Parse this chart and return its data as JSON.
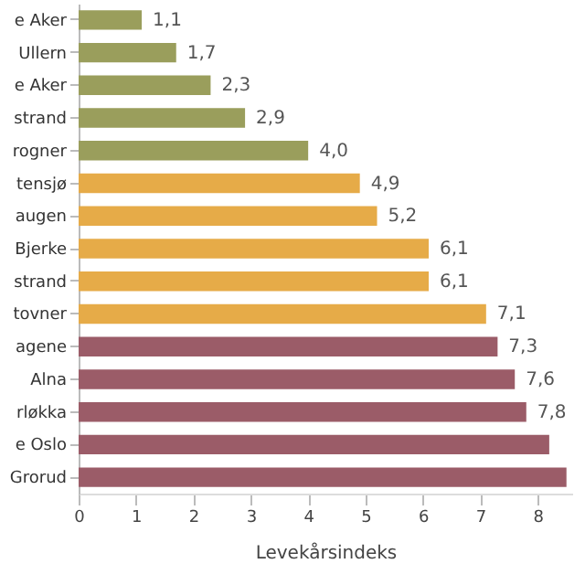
{
  "chart_data": {
    "type": "bar",
    "orientation": "horizontal",
    "xlabel": "Levekårsindeks",
    "categories": [
      "e Aker",
      "Ullern",
      "e Aker",
      "strand",
      "rogner",
      "tensjø",
      "augen",
      "Bjerke",
      "strand",
      "tovner",
      "agene",
      "Alna",
      "rløkka",
      "e Oslo",
      "Grorud"
    ],
    "values": [
      1.1,
      1.7,
      2.3,
      2.9,
      4.0,
      4.9,
      5.2,
      6.1,
      6.1,
      7.1,
      7.3,
      7.6,
      7.8,
      8.2,
      8.5
    ],
    "value_labels": [
      "1,1",
      "1,7",
      "2,3",
      "2,9",
      "4,0",
      "4,9",
      "5,2",
      "6,1",
      "6,1",
      "7,1",
      "7,3",
      "7,6",
      "7,8",
      null,
      null
    ],
    "colors": [
      "#9a9e5c",
      "#9a9e5c",
      "#9a9e5c",
      "#9a9e5c",
      "#9a9e5c",
      "#e6ab48",
      "#e6ab48",
      "#e6ab48",
      "#e6ab48",
      "#e6ab48",
      "#9b5c68",
      "#9b5c68",
      "#9b5c68",
      "#9b5c68",
      "#9b5c68"
    ],
    "xlim": [
      0,
      8.6
    ],
    "xticks": [
      0,
      1,
      2,
      3,
      4,
      5,
      6,
      7,
      8
    ],
    "grid": false
  }
}
